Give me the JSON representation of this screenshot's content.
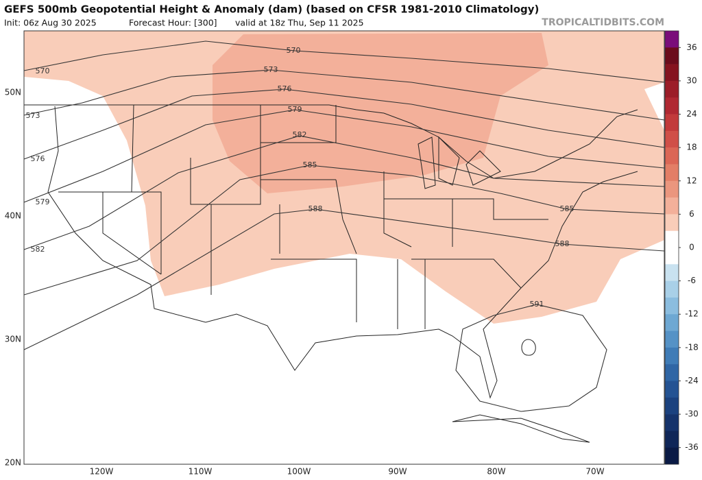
{
  "header": {
    "title": "GEFS 500mb Geopotential Height & Anomaly (dam) (based on CFSR 1981-2010 Climatology)",
    "init": "Init: 06z Aug 30 2025",
    "forecast_hour": "Forecast Hour: [300]",
    "valid": "valid at 18z Thu, Sep 11 2025",
    "source": "TROPICALTIDBITS.COM"
  },
  "map": {
    "lat_labels": [
      "50N",
      "40N",
      "30N",
      "20N"
    ],
    "lon_labels": [
      "120W",
      "110W",
      "100W",
      "90W",
      "80W",
      "70W"
    ],
    "contours": [
      570,
      573,
      576,
      579,
      582,
      585,
      588,
      591
    ]
  },
  "colorbar": {
    "range": [
      -39,
      39
    ],
    "ticks": [
      36,
      30,
      24,
      18,
      12,
      6,
      0,
      -6,
      -12,
      -18,
      -24,
      -30,
      -36
    ],
    "colors": [
      "#7a0d7a",
      "#6b0c1c",
      "#85131f",
      "#9c1d28",
      "#b02832",
      "#c23a3b",
      "#d04f48",
      "#db6655",
      "#e37e66",
      "#eb967e",
      "#f3b09a",
      "#f9cdb9",
      "#ffffff",
      "#ffffff",
      "#c9e2f0",
      "#a9d0e8",
      "#8bbddf",
      "#6ea8d3",
      "#5592c6",
      "#3f7cb7",
      "#2f66a5",
      "#245393",
      "#1b427f",
      "#15336b",
      "#0f2658",
      "#0a1a45"
    ]
  }
}
